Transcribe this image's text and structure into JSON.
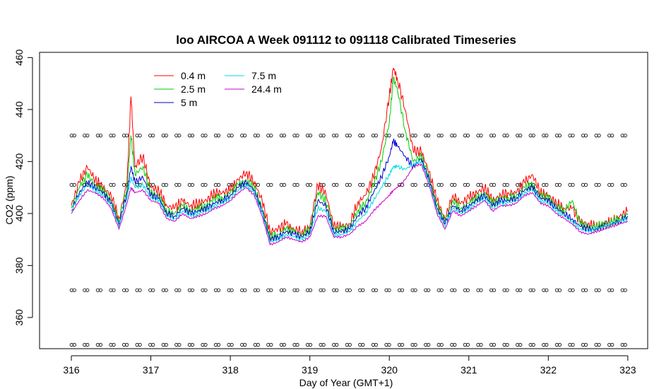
{
  "chart_data": {
    "type": "line",
    "title": "loo AIRCOA A  Week 091112 to 091118  Calibrated Timeseries",
    "xlabel": "Day of Year (GMT+1)",
    "ylabel": "CO2 (ppm)",
    "xlim": [
      315.6,
      323.25
    ],
    "ylim": [
      348,
      462
    ],
    "x_ticks": [
      316,
      317,
      318,
      319,
      320,
      321,
      322,
      323
    ],
    "y_ticks": [
      360,
      380,
      400,
      420,
      440,
      460
    ],
    "grid": false,
    "legend_position": "top-left",
    "x": [
      316.0,
      316.1,
      316.2,
      316.3,
      316.4,
      316.5,
      316.6,
      316.7,
      316.75,
      316.8,
      316.9,
      317.0,
      317.1,
      317.2,
      317.3,
      317.4,
      317.5,
      317.6,
      317.7,
      317.8,
      317.9,
      318.0,
      318.1,
      318.2,
      318.3,
      318.4,
      318.5,
      318.6,
      318.7,
      318.8,
      318.9,
      319.0,
      319.1,
      319.2,
      319.3,
      319.4,
      319.5,
      319.6,
      319.7,
      319.8,
      319.9,
      320.0,
      320.05,
      320.1,
      320.2,
      320.3,
      320.4,
      320.5,
      320.6,
      320.7,
      320.8,
      320.9,
      321.0,
      321.1,
      321.2,
      321.3,
      321.4,
      321.5,
      321.6,
      321.7,
      321.8,
      321.9,
      322.0,
      322.1,
      322.2,
      322.3,
      322.4,
      322.5,
      322.6,
      322.7,
      322.8,
      322.9,
      323.0
    ],
    "series": [
      {
        "name": "0.4 m",
        "color": "#ff0000",
        "values": [
          403,
          412,
          418,
          413,
          410,
          407,
          398,
          412,
          445,
          418,
          422,
          410,
          409,
          403,
          402,
          405,
          403,
          404,
          405,
          408,
          408,
          409,
          413,
          416,
          412,
          405,
          393,
          394,
          396,
          394,
          393,
          395,
          411,
          408,
          395,
          395,
          396,
          404,
          407,
          414,
          425,
          445,
          456,
          452,
          440,
          424,
          424,
          416,
          405,
          398,
          407,
          404,
          406,
          408,
          410,
          405,
          407,
          408,
          408,
          412,
          415,
          408,
          407,
          404,
          402,
          402,
          397,
          396,
          395,
          396,
          397,
          399,
          401
        ]
      },
      {
        "name": "2.5 m",
        "color": "#00cc00",
        "values": [
          402,
          410,
          415,
          411,
          409,
          405,
          397,
          410,
          430,
          415,
          418,
          408,
          407,
          401,
          400,
          403,
          401,
          402,
          403,
          406,
          406,
          408,
          411,
          413,
          410,
          402,
          391,
          392,
          394,
          393,
          392,
          394,
          408,
          405,
          394,
          394,
          395,
          401,
          404,
          411,
          420,
          435,
          452,
          448,
          432,
          420,
          422,
          414,
          403,
          397,
          405,
          402,
          404,
          406,
          408,
          404,
          406,
          406,
          407,
          410,
          411,
          407,
          406,
          403,
          401,
          405,
          396,
          395,
          395,
          396,
          397,
          398,
          400
        ]
      },
      {
        "name": "5 m",
        "color": "#0000cc",
        "values": [
          401,
          408,
          412,
          410,
          408,
          404,
          396,
          408,
          418,
          412,
          414,
          407,
          406,
          400,
          399,
          402,
          400,
          401,
          402,
          404,
          405,
          407,
          410,
          412,
          409,
          401,
          390,
          391,
          393,
          392,
          391,
          393,
          405,
          403,
          393,
          393,
          394,
          399,
          402,
          408,
          414,
          422,
          428,
          426,
          422,
          418,
          421,
          413,
          402,
          396,
          403,
          401,
          403,
          405,
          407,
          403,
          405,
          405,
          406,
          409,
          410,
          406,
          405,
          402,
          400,
          398,
          395,
          394,
          394,
          395,
          396,
          397,
          399
        ]
      },
      {
        "name": "7.5 m",
        "color": "#00dddd",
        "values": [
          401,
          407,
          411,
          409,
          407,
          403,
          395,
          406,
          414,
          410,
          411,
          406,
          405,
          399,
          398,
          401,
          399,
          400,
          401,
          403,
          404,
          406,
          409,
          411,
          408,
          400,
          389,
          390,
          392,
          391,
          390,
          392,
          402,
          401,
          392,
          392,
          393,
          397,
          400,
          405,
          410,
          415,
          418,
          418,
          417,
          419,
          420,
          412,
          401,
          395,
          402,
          400,
          402,
          404,
          406,
          402,
          404,
          404,
          405,
          408,
          409,
          405,
          404,
          401,
          399,
          397,
          394,
          393,
          394,
          395,
          396,
          397,
          398
        ]
      },
      {
        "name": "24.4 m",
        "color": "#cc00cc",
        "values": [
          400,
          405,
          409,
          408,
          406,
          402,
          394,
          404,
          410,
          408,
          409,
          405,
          404,
          398,
          397,
          400,
          398,
          399,
          400,
          402,
          403,
          405,
          408,
          410,
          407,
          399,
          388,
          389,
          391,
          390,
          389,
          391,
          399,
          399,
          391,
          391,
          392,
          395,
          397,
          401,
          404,
          407,
          409,
          410,
          413,
          418,
          419,
          411,
          400,
          394,
          401,
          399,
          401,
          403,
          405,
          401,
          403,
          403,
          404,
          407,
          408,
          404,
          403,
          400,
          398,
          396,
          393,
          392,
          393,
          394,
          395,
          396,
          397
        ]
      }
    ],
    "reference_points": {
      "marker": "open-circle",
      "levels": [
        349.5,
        370.5,
        411,
        430
      ],
      "x_start": 316.02,
      "x_end": 323.0,
      "x_step": 0.165
    }
  }
}
